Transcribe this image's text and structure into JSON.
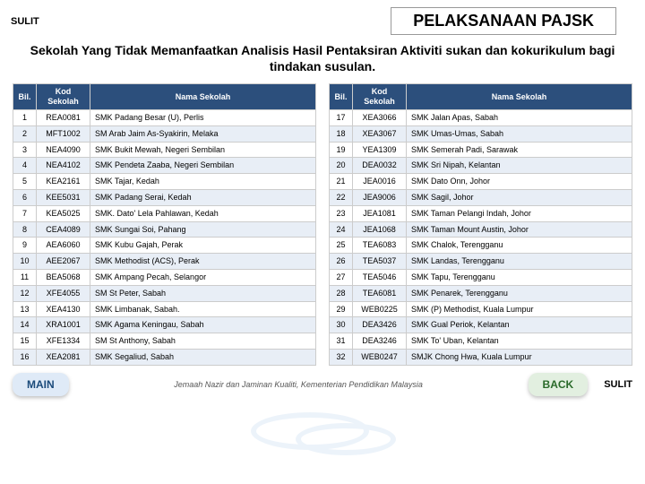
{
  "labels": {
    "sulit": "SULIT",
    "title": "PELAKSANAAN  PAJSK",
    "subtitle": "Sekolah Yang Tidak Memanfaatkan Analisis Hasil Pentaksiran Aktiviti sukan dan kokurikulum bagi tindakan susulan.",
    "col_bil": "Bil.",
    "col_kod": "Kod Sekolah",
    "col_nama": "Nama Sekolah",
    "main_btn": "MAIN",
    "back_btn": "BACK",
    "footer": "Jemaah Nazir dan Jaminan Kualiti, Kementerian Pendidikan Malaysia"
  },
  "styling": {
    "header_bg": "#2c4f7c",
    "header_fg": "#ffffff",
    "alt_row_bg": "#e8eef6",
    "border_color": "#cccccc",
    "main_btn_bg": "#dfeaf7",
    "main_btn_fg": "#1a4a7a",
    "back_btn_bg": "#e2efe0",
    "back_btn_fg": "#2a6a2a",
    "body_font": "Arial",
    "title_fontsize_pt": 18,
    "subtitle_fontsize_pt": 14,
    "cell_fontsize_pt": 9
  },
  "left_rows": [
    {
      "bil": "1",
      "kod": "REA0081",
      "nama": "SMK Padang Besar (U), Perlis"
    },
    {
      "bil": "2",
      "kod": "MFT1002",
      "nama": "SM Arab Jaim As-Syakirin, Melaka"
    },
    {
      "bil": "3",
      "kod": "NEA4090",
      "nama": "SMK Bukit Mewah, Negeri Sembilan"
    },
    {
      "bil": "4",
      "kod": "NEA4102",
      "nama": "SMK Pendeta Zaaba, Negeri Sembilan"
    },
    {
      "bil": "5",
      "kod": "KEA2161",
      "nama": "SMK Tajar, Kedah"
    },
    {
      "bil": "6",
      "kod": "KEE5031",
      "nama": "SMK Padang Serai, Kedah"
    },
    {
      "bil": "7",
      "kod": "KEA5025",
      "nama": "SMK. Dato' Lela Pahlawan, Kedah"
    },
    {
      "bil": "8",
      "kod": "CEA4089",
      "nama": "SMK Sungai Soi, Pahang"
    },
    {
      "bil": "9",
      "kod": "AEA6060",
      "nama": "SMK Kubu Gajah, Perak"
    },
    {
      "bil": "10",
      "kod": "AEE2067",
      "nama": "SMK Methodist (ACS), Perak"
    },
    {
      "bil": "11",
      "kod": "BEA5068",
      "nama": "SMK Ampang Pecah, Selangor"
    },
    {
      "bil": "12",
      "kod": "XFE4055",
      "nama": "SM St Peter, Sabah"
    },
    {
      "bil": "13",
      "kod": "XEA4130",
      "nama": "SMK Limbanak, Sabah."
    },
    {
      "bil": "14",
      "kod": "XRA1001",
      "nama": "SMK Agama Keningau, Sabah"
    },
    {
      "bil": "15",
      "kod": "XFE1334",
      "nama": "SM St Anthony, Sabah"
    },
    {
      "bil": "16",
      "kod": "XEA2081",
      "nama": "SMK Segaliud, Sabah"
    }
  ],
  "right_rows": [
    {
      "bil": "17",
      "kod": "XEA3066",
      "nama": "SMK Jalan Apas, Sabah"
    },
    {
      "bil": "18",
      "kod": "XEA3067",
      "nama": "SMK Umas-Umas, Sabah"
    },
    {
      "bil": "19",
      "kod": "YEA1309",
      "nama": "SMK Semerah Padi, Sarawak"
    },
    {
      "bil": "20",
      "kod": "DEA0032",
      "nama": "SMK Sri Nipah, Kelantan"
    },
    {
      "bil": "21",
      "kod": "JEA0016",
      "nama": "SMK Dato Onn, Johor"
    },
    {
      "bil": "22",
      "kod": "JEA9006",
      "nama": "SMK Sagil, Johor"
    },
    {
      "bil": "23",
      "kod": "JEA1081",
      "nama": "SMK Taman Pelangi Indah, Johor"
    },
    {
      "bil": "24",
      "kod": "JEA1068",
      "nama": "SMK Taman Mount Austin, Johor"
    },
    {
      "bil": "25",
      "kod": "TEA6083",
      "nama": "SMK Chalok, Terengganu"
    },
    {
      "bil": "26",
      "kod": "TEA5037",
      "nama": "SMK Landas, Terengganu"
    },
    {
      "bil": "27",
      "kod": "TEA5046",
      "nama": "SMK Tapu, Terengganu"
    },
    {
      "bil": "28",
      "kod": "TEA6081",
      "nama": "SMK Penarek, Terengganu"
    },
    {
      "bil": "29",
      "kod": "WEB0225",
      "nama": "SMK (P) Methodist, Kuala Lumpur"
    },
    {
      "bil": "30",
      "kod": "DEA3426",
      "nama": "SMK Gual Periok, Kelantan"
    },
    {
      "bil": "31",
      "kod": "DEA3246",
      "nama": "SMK To' Uban, Kelantan"
    },
    {
      "bil": "32",
      "kod": "WEB0247",
      "nama": "SMJK Chong Hwa, Kuala Lumpur"
    }
  ]
}
